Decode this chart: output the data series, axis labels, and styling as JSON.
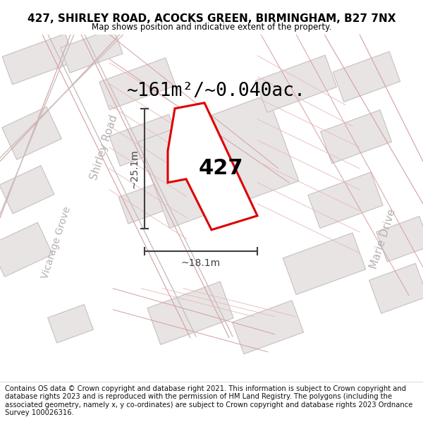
{
  "title": "427, SHIRLEY ROAD, ACOCKS GREEN, BIRMINGHAM, B27 7NX",
  "subtitle": "Map shows position and indicative extent of the property.",
  "footer": "Contains OS data © Crown copyright and database right 2021. This information is subject to Crown copyright and database rights 2023 and is reproduced with the permission of HM Land Registry. The polygons (including the associated geometry, namely x, y co-ordinates) are subject to Crown copyright and database rights 2023 Ordnance Survey 100026316.",
  "area_text": "~161m²/~0.040ac.",
  "dim_v": "~25.1m",
  "dim_h": "~18.1m",
  "label": "427",
  "map_bg": "#f9f7f7",
  "block_fill": "#e8e4e4",
  "block_edge": "#c8c0c0",
  "prop_line_color": "#f0b0b0",
  "road_edge_color": "#d0b0b0",
  "plot_fill": "#ffffff",
  "plot_stroke": "#dd0000",
  "road_label_color": "#b8b0b0",
  "dim_color": "#404040",
  "title_fontsize": 11,
  "subtitle_fontsize": 8.5,
  "footer_fontsize": 7.2,
  "area_fontsize": 19,
  "label_fontsize": 22,
  "dim_fontsize": 10,
  "road_label_fontsize": 11
}
